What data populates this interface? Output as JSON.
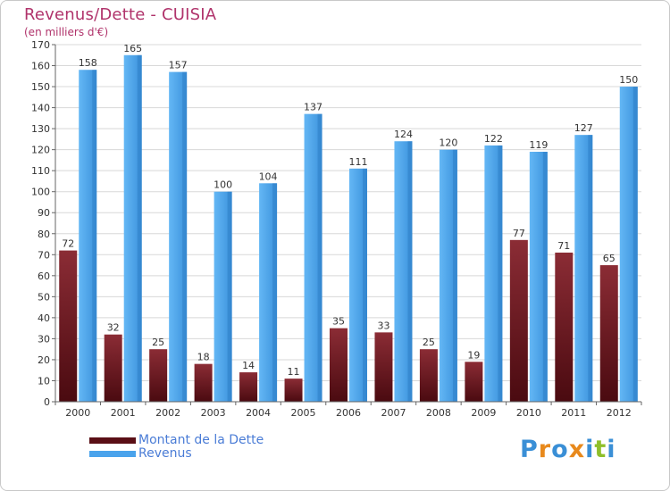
{
  "header": {
    "title": "Revenus/Dette - CUISIA",
    "subtitle": "(en milliers d'€)"
  },
  "colors": {
    "dette_top": "#8b2c35",
    "dette_bottom": "#4a0a10",
    "revenus_top": "#5aaff0",
    "revenus_bottom": "#2f86d6",
    "axis": "#666666",
    "grid": "#d8d8d8"
  },
  "chart_data": {
    "type": "bar",
    "title": "Revenus/Dette - CUISIA",
    "subtitle": "(en milliers d'€)",
    "categories": [
      "2000",
      "2001",
      "2002",
      "2003",
      "2004",
      "2005",
      "2006",
      "2007",
      "2008",
      "2009",
      "2010",
      "2011",
      "2012"
    ],
    "series": [
      {
        "name": "Montant de la Dette",
        "values": [
          72,
          32,
          25,
          18,
          14,
          11,
          35,
          33,
          25,
          19,
          77,
          71,
          65
        ]
      },
      {
        "name": "Revenus",
        "values": [
          158,
          165,
          157,
          100,
          104,
          137,
          111,
          124,
          120,
          122,
          119,
          127,
          150
        ]
      }
    ],
    "ylim": [
      0,
      170
    ],
    "yticks": [
      0,
      10,
      20,
      30,
      40,
      50,
      60,
      70,
      80,
      90,
      100,
      110,
      120,
      130,
      140,
      150,
      160,
      170
    ],
    "grid": true,
    "legend": "bottom-left"
  },
  "legend": {
    "items": [
      {
        "label": "Montant de la Dette"
      },
      {
        "label": "Revenus"
      }
    ]
  },
  "brand": {
    "letters": [
      "P",
      "r",
      "o",
      "x",
      "i",
      "t",
      "i"
    ],
    "colors": [
      "#3a8fd6",
      "#e8891c",
      "#3a8fd6",
      "#e8891c",
      "#3a8fd6",
      "#8fbf2a",
      "#3a8fd6"
    ]
  }
}
